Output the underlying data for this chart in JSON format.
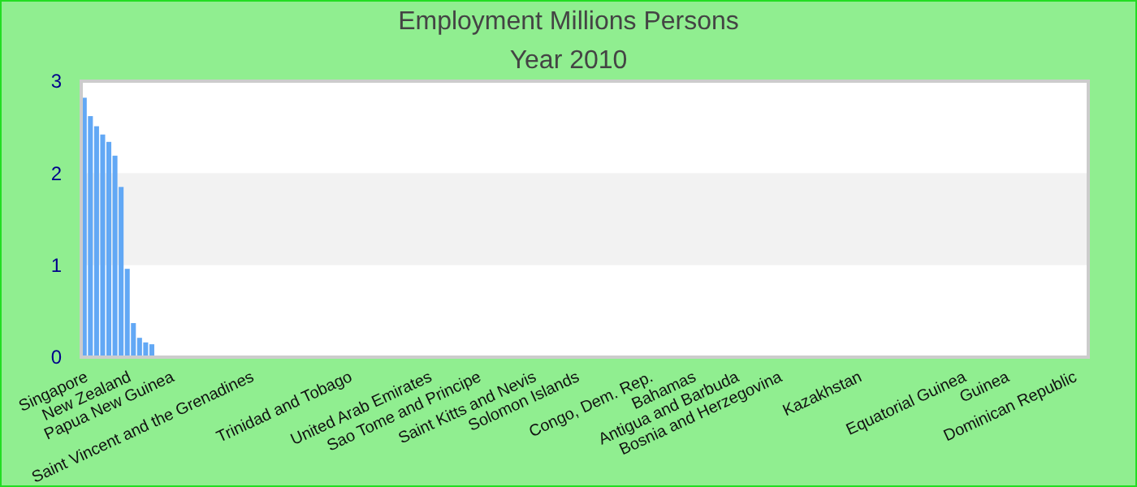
{
  "chart_data": {
    "type": "bar",
    "title": "Employment Millions Persons",
    "subtitle": "Year 2010",
    "color": "#62a8f5",
    "bands": [
      {
        "axis": "y",
        "from": 1,
        "to": 2,
        "color": "#f2f2f2"
      }
    ],
    "ylim": [
      0,
      3
    ],
    "yticks": [
      0,
      1,
      2,
      3
    ],
    "categories": [
      "Singapore",
      null,
      null,
      null,
      null,
      null,
      null,
      "New Zealand",
      null,
      null,
      null,
      null,
      null,
      null,
      "Papua New Guinea",
      null,
      null,
      null,
      null,
      null,
      null,
      null,
      null,
      null,
      null,
      null,
      null,
      "Saint Vincent and the Grenadines",
      null,
      null,
      null,
      null,
      null,
      null,
      null,
      null,
      null,
      null,
      null,
      null,
      null,
      null,
      null,
      "Trinidad and Tobago",
      null,
      null,
      null,
      null,
      null,
      null,
      null,
      null,
      null,
      null,
      null,
      null,
      "United Arab Emirates",
      null,
      null,
      null,
      null,
      null,
      null,
      null,
      "Sao Tome and Principe",
      null,
      null,
      null,
      null,
      null,
      null,
      null,
      null,
      "Saint Kitts and Nevis",
      null,
      null,
      null,
      null,
      null,
      null,
      "Solomon Islands",
      null,
      null,
      null,
      null,
      null,
      null,
      null,
      null,
      null,
      null,
      null,
      "Congo, Dem. Rep.",
      null,
      null,
      null,
      null,
      null,
      null,
      "Bahamas",
      null,
      null,
      null,
      null,
      null,
      null,
      "Antigua and Barbuda",
      null,
      null,
      null,
      null,
      null,
      null,
      "Bosnia and Herzegovina",
      null,
      null,
      null,
      null,
      null,
      null,
      null,
      null,
      null,
      null,
      null,
      null,
      "Kazakhstan",
      null,
      null,
      null,
      null,
      null,
      null,
      null,
      null,
      null,
      null,
      null,
      null,
      null,
      null,
      null,
      null,
      "Equatorial Guinea",
      null,
      null,
      null,
      null,
      null,
      null,
      "Guinea",
      null,
      null,
      null,
      null,
      null,
      null,
      null,
      null,
      null,
      null,
      "Dominican Republic",
      null,
      null
    ],
    "values": [
      2.82,
      2.62,
      2.51,
      2.42,
      2.34,
      2.19,
      1.85,
      0.96,
      0.37,
      0.21,
      0.16,
      0.14,
      0,
      0,
      0,
      0,
      0,
      0,
      0,
      0,
      0,
      0,
      0,
      0,
      0,
      0,
      0,
      0,
      0,
      0,
      0,
      0,
      0,
      0,
      0,
      0,
      0,
      0,
      0,
      0,
      0,
      0,
      0,
      0,
      0,
      0,
      0,
      0,
      0,
      0,
      0,
      0,
      0,
      0,
      0,
      0,
      0,
      0,
      0,
      0,
      0,
      0,
      0,
      0,
      0,
      0,
      0,
      0,
      0,
      0,
      0,
      0,
      0,
      0,
      0,
      0,
      0,
      0,
      0,
      0,
      0,
      0,
      0,
      0,
      0,
      0,
      0,
      0,
      0,
      0,
      0,
      0,
      0,
      0,
      0,
      0,
      0,
      0,
      0,
      0,
      0,
      0,
      0,
      0,
      0,
      0,
      0,
      0,
      0,
      0,
      0,
      0,
      0,
      0,
      0,
      0,
      0,
      0,
      0,
      0,
      0,
      0,
      0,
      0,
      0,
      0,
      0,
      0,
      0,
      0,
      0,
      0,
      0,
      0,
      0,
      0,
      0,
      0,
      0,
      0,
      0,
      0,
      0,
      0,
      0,
      0,
      0,
      0,
      0,
      0,
      0,
      0,
      0,
      0,
      0,
      0,
      0,
      0,
      0,
      0,
      0,
      0,
      0,
      0
    ]
  }
}
